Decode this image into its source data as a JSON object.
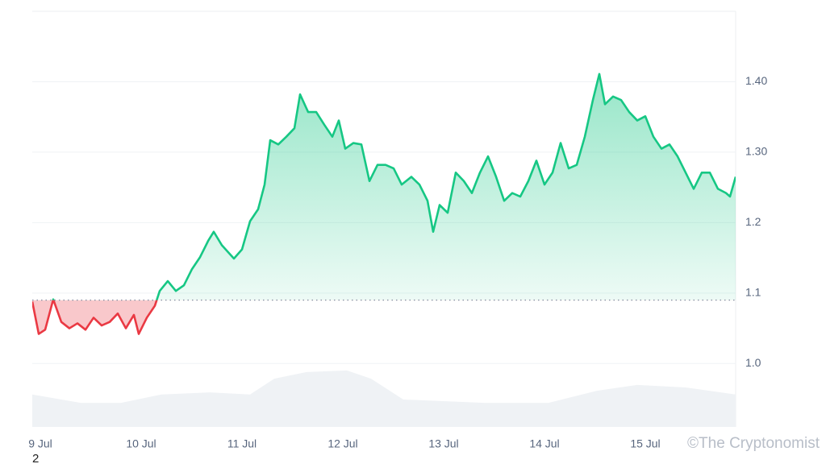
{
  "chart_data": {
    "type": "baseline-area",
    "x": [
      -0.08,
      -0.016,
      0.048,
      0.128,
      0.208,
      0.288,
      0.368,
      0.448,
      0.528,
      0.608,
      0.688,
      0.768,
      0.848,
      0.928,
      0.976,
      1.056,
      1.136,
      1.184,
      1.264,
      1.344,
      1.424,
      1.504,
      1.584,
      1.664,
      1.72,
      1.8,
      1.92,
      2.0,
      2.08,
      2.16,
      2.224,
      2.28,
      2.36,
      2.44,
      2.52,
      2.576,
      2.656,
      2.736,
      2.816,
      2.896,
      2.96,
      3.024,
      3.104,
      3.184,
      3.264,
      3.344,
      3.424,
      3.504,
      3.584,
      3.68,
      3.76,
      3.84,
      3.896,
      3.96,
      4.04,
      4.12,
      4.2,
      4.28,
      4.36,
      4.44,
      4.52,
      4.6,
      4.68,
      4.76,
      4.84,
      4.92,
      5.0,
      5.08,
      5.16,
      5.24,
      5.32,
      5.4,
      5.48,
      5.544,
      5.6,
      5.68,
      5.76,
      5.84,
      5.92,
      6.0,
      6.08,
      6.16,
      6.24,
      6.32,
      6.4,
      6.48,
      6.56,
      6.64,
      6.72,
      6.8,
      6.84,
      6.896
    ],
    "series": [
      {
        "color": "#16c784",
        "below_color": "#ea3943",
        "values": [
          1.088,
          1.042,
          1.048,
          1.091,
          1.059,
          1.05,
          1.057,
          1.048,
          1.065,
          1.054,
          1.059,
          1.071,
          1.05,
          1.069,
          1.042,
          1.065,
          1.082,
          1.103,
          1.117,
          1.103,
          1.111,
          1.134,
          1.151,
          1.174,
          1.187,
          1.168,
          1.149,
          1.162,
          1.202,
          1.219,
          1.254,
          1.317,
          1.311,
          1.322,
          1.334,
          1.382,
          1.357,
          1.357,
          1.339,
          1.322,
          1.345,
          1.305,
          1.313,
          1.311,
          1.259,
          1.282,
          1.282,
          1.277,
          1.254,
          1.265,
          1.254,
          1.231,
          1.187,
          1.225,
          1.214,
          1.271,
          1.259,
          1.242,
          1.271,
          1.294,
          1.265,
          1.231,
          1.242,
          1.237,
          1.259,
          1.288,
          1.254,
          1.271,
          1.313,
          1.277,
          1.282,
          1.322,
          1.374,
          1.411,
          1.368,
          1.379,
          1.374,
          1.357,
          1.345,
          1.351,
          1.322,
          1.305,
          1.311,
          1.294,
          1.271,
          1.248,
          1.271,
          1.271,
          1.248,
          1.242,
          1.237,
          1.265
        ]
      },
      {
        "type": "area",
        "axis": "y2",
        "color": "#eff2f5",
        "x": [
          -0.08,
          0.4,
          0.8,
          1.2,
          1.68,
          2.08,
          2.32,
          2.64,
          3.04,
          3.28,
          3.6,
          4.0,
          4.4,
          5.04,
          5.52,
          5.92,
          6.4,
          6.896
        ],
        "values": [
          7.8,
          5.8,
          5.8,
          7.8,
          8.3,
          7.8,
          11.6,
          13.2,
          13.6,
          11.6,
          6.6,
          6.2,
          5.8,
          5.8,
          8.7,
          10.1,
          9.5,
          7.8
        ]
      }
    ],
    "baseline": 1.09,
    "xlim": [
      -0.08,
      6.896
    ],
    "xticks": [
      {
        "value": 0,
        "label": "9 Jul"
      },
      {
        "value": 1,
        "label": "10 Jul"
      },
      {
        "value": 2,
        "label": "11 Jul"
      },
      {
        "value": 3,
        "label": "12 Jul"
      },
      {
        "value": 4,
        "label": "13 Jul"
      },
      {
        "value": 5,
        "label": "14 Jul"
      },
      {
        "value": 6,
        "label": "15 Jul"
      }
    ],
    "ylim": [
      0.91,
      1.5
    ],
    "yticks": [
      {
        "value": 1,
        "label": "1.0"
      },
      1.1,
      1.2,
      {
        "value": 1.3,
        "label": "1.30"
      },
      {
        "value": 1.4,
        "label": "1.40"
      }
    ],
    "y2lim": [
      0,
      100
    ],
    "grid": true,
    "footnote": "2",
    "watermark": "©The Cryptonomist"
  }
}
